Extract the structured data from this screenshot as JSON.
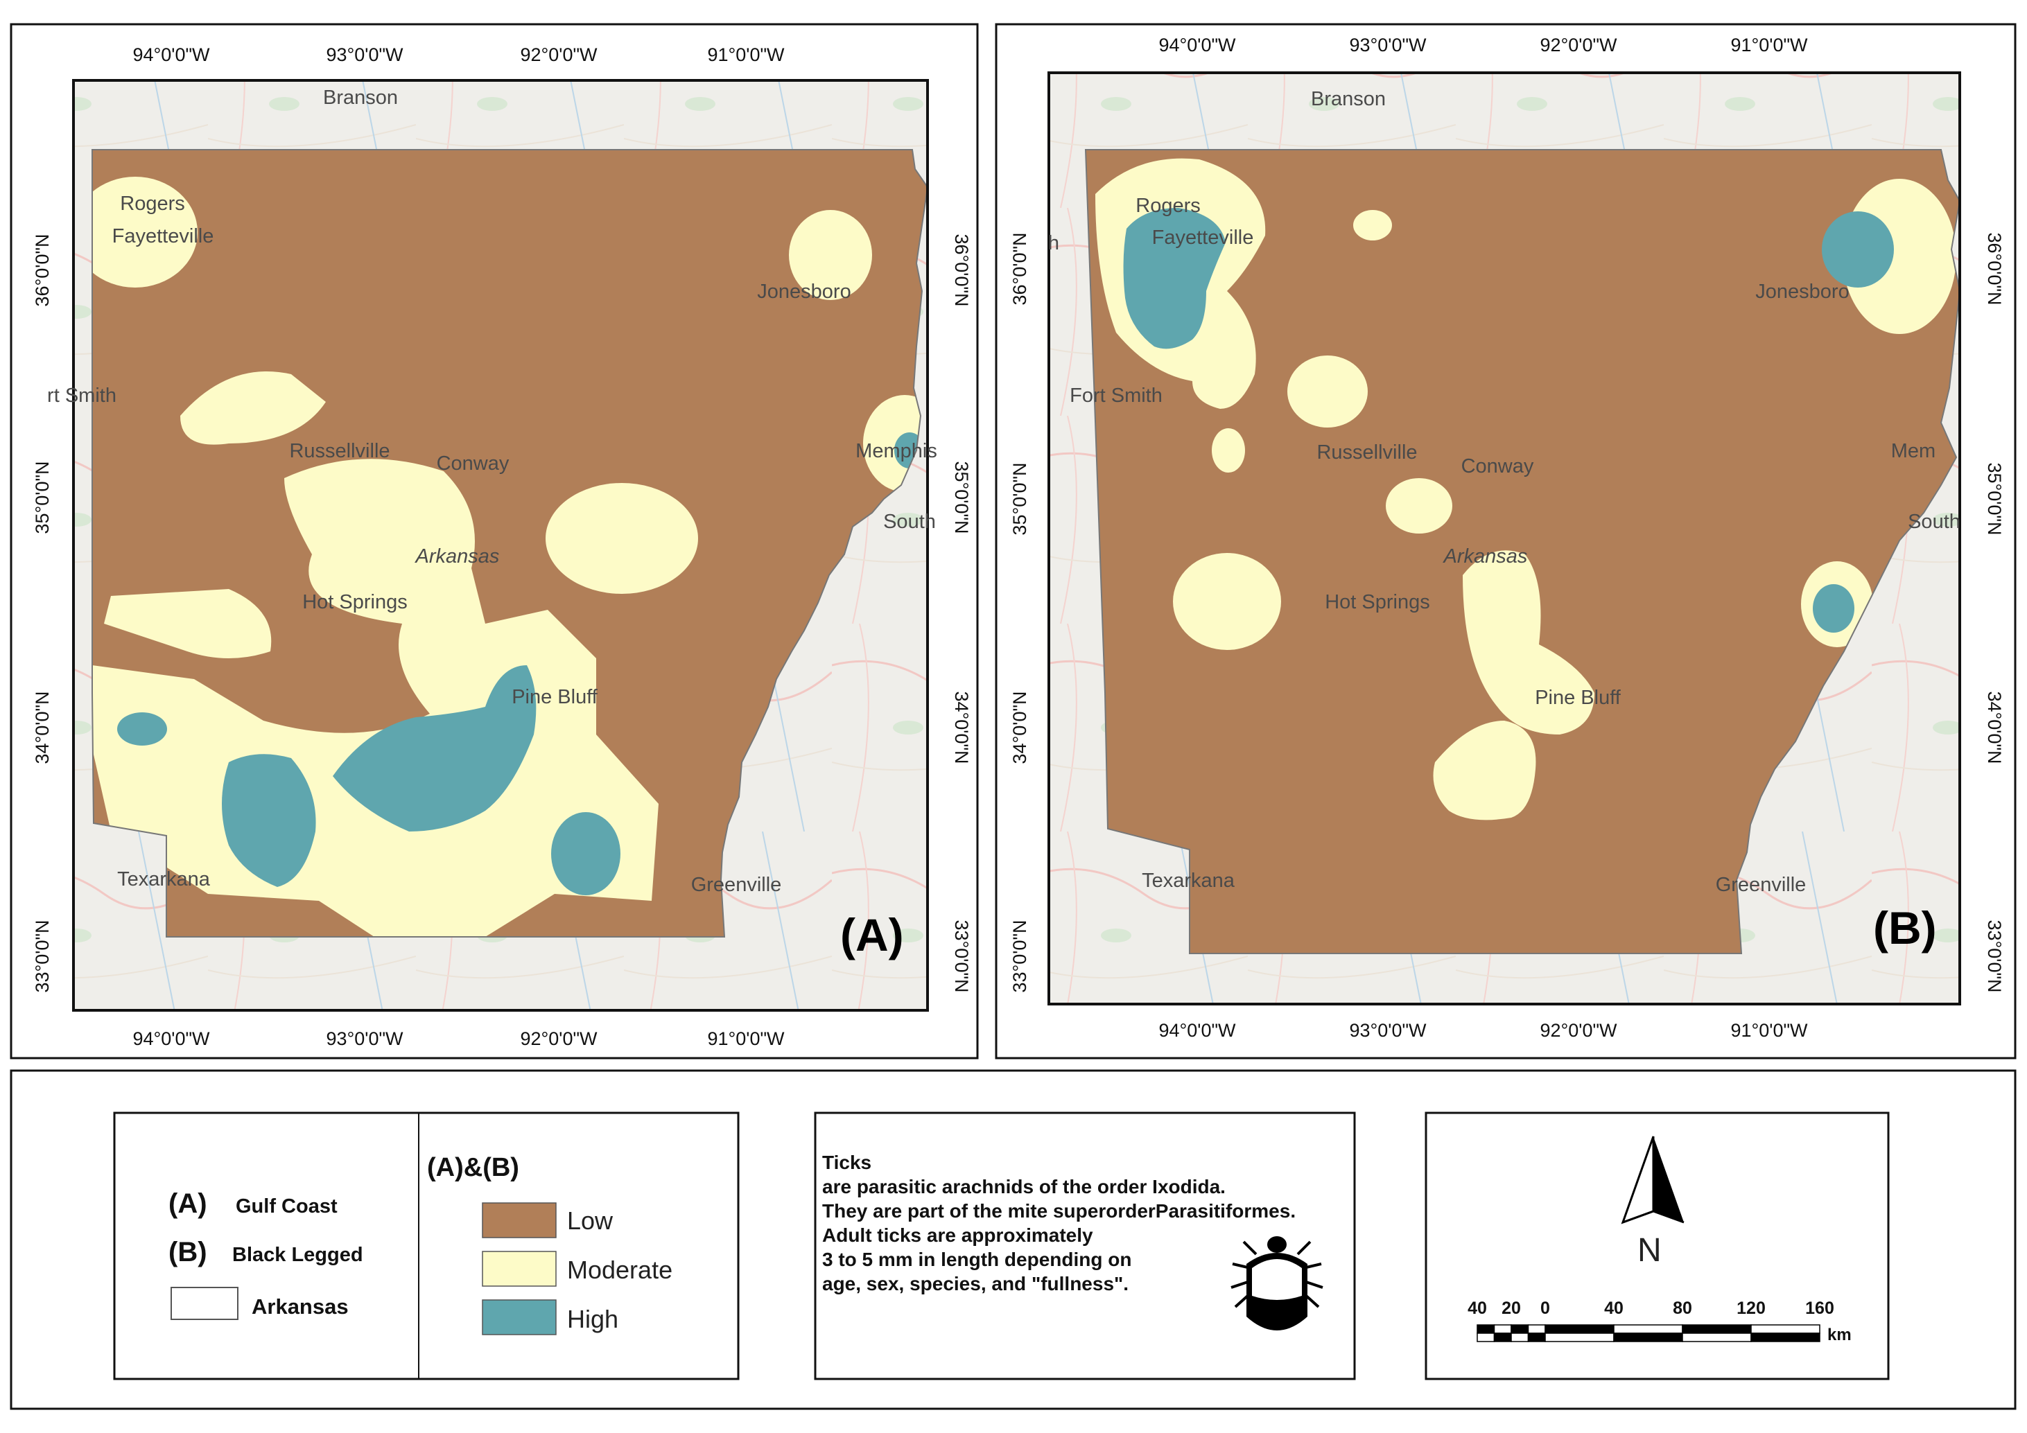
{
  "maps": [
    {
      "tag": "(A)",
      "cities": [
        "Branson",
        "Rogers",
        "Fayetteville",
        "Jonesboro",
        "rt Smith",
        "Russellville",
        "Conway",
        "Arkansas",
        "Memphis",
        "South",
        "Hot Springs",
        "Pine Bluff",
        "Texarkana",
        "Greenville"
      ]
    },
    {
      "tag": "(B)",
      "cities": [
        "Branson",
        "Rogers",
        "Fayetteville",
        "Jonesboro",
        "Fort Smith",
        "Russellville",
        "Conway",
        "Arkansas",
        "Mem",
        "South",
        "Hot Springs",
        "Pine Bluff",
        "Texarkana",
        "Greenville",
        "h"
      ]
    }
  ],
  "axes": {
    "lon_labels": [
      "94°0'0\"W",
      "93°0'0\"W",
      "92°0'0\"W",
      "91°0'0\"W"
    ],
    "lat_labels": [
      "36°0'0\"N",
      "35°0'0\"N",
      "34°0'0\"N",
      "33°0'0\"N"
    ]
  },
  "legend": {
    "species": [
      {
        "key": "(A)",
        "name": "Gulf Coast"
      },
      {
        "key": "(B)",
        "name": "Black Legged"
      }
    ],
    "boundary_label": "Arkansas",
    "classes_title": "(A)&(B)",
    "classes": [
      {
        "label": "Low",
        "color": "#b17f58"
      },
      {
        "label": "Moderate",
        "color": "#fdfbc8"
      },
      {
        "label": "High",
        "color": "#5fa6ae"
      }
    ]
  },
  "info": {
    "lines": [
      "Ticks",
      "are parasitic arachnids of the order Ixodida.",
      "They are part of the mite superorderParasitiformes.",
      "Adult ticks are approximately",
      " 3 to 5 mm in length depending on",
      " age, sex, species, and \"fullness\"."
    ],
    "icon": "tick-icon"
  },
  "north_arrow": {
    "label": "N",
    "icon": "north-arrow-icon"
  },
  "scale_bar": {
    "ticks": [
      "40",
      "20",
      "0",
      "40",
      "80",
      "120",
      "160"
    ],
    "unit": "km"
  }
}
